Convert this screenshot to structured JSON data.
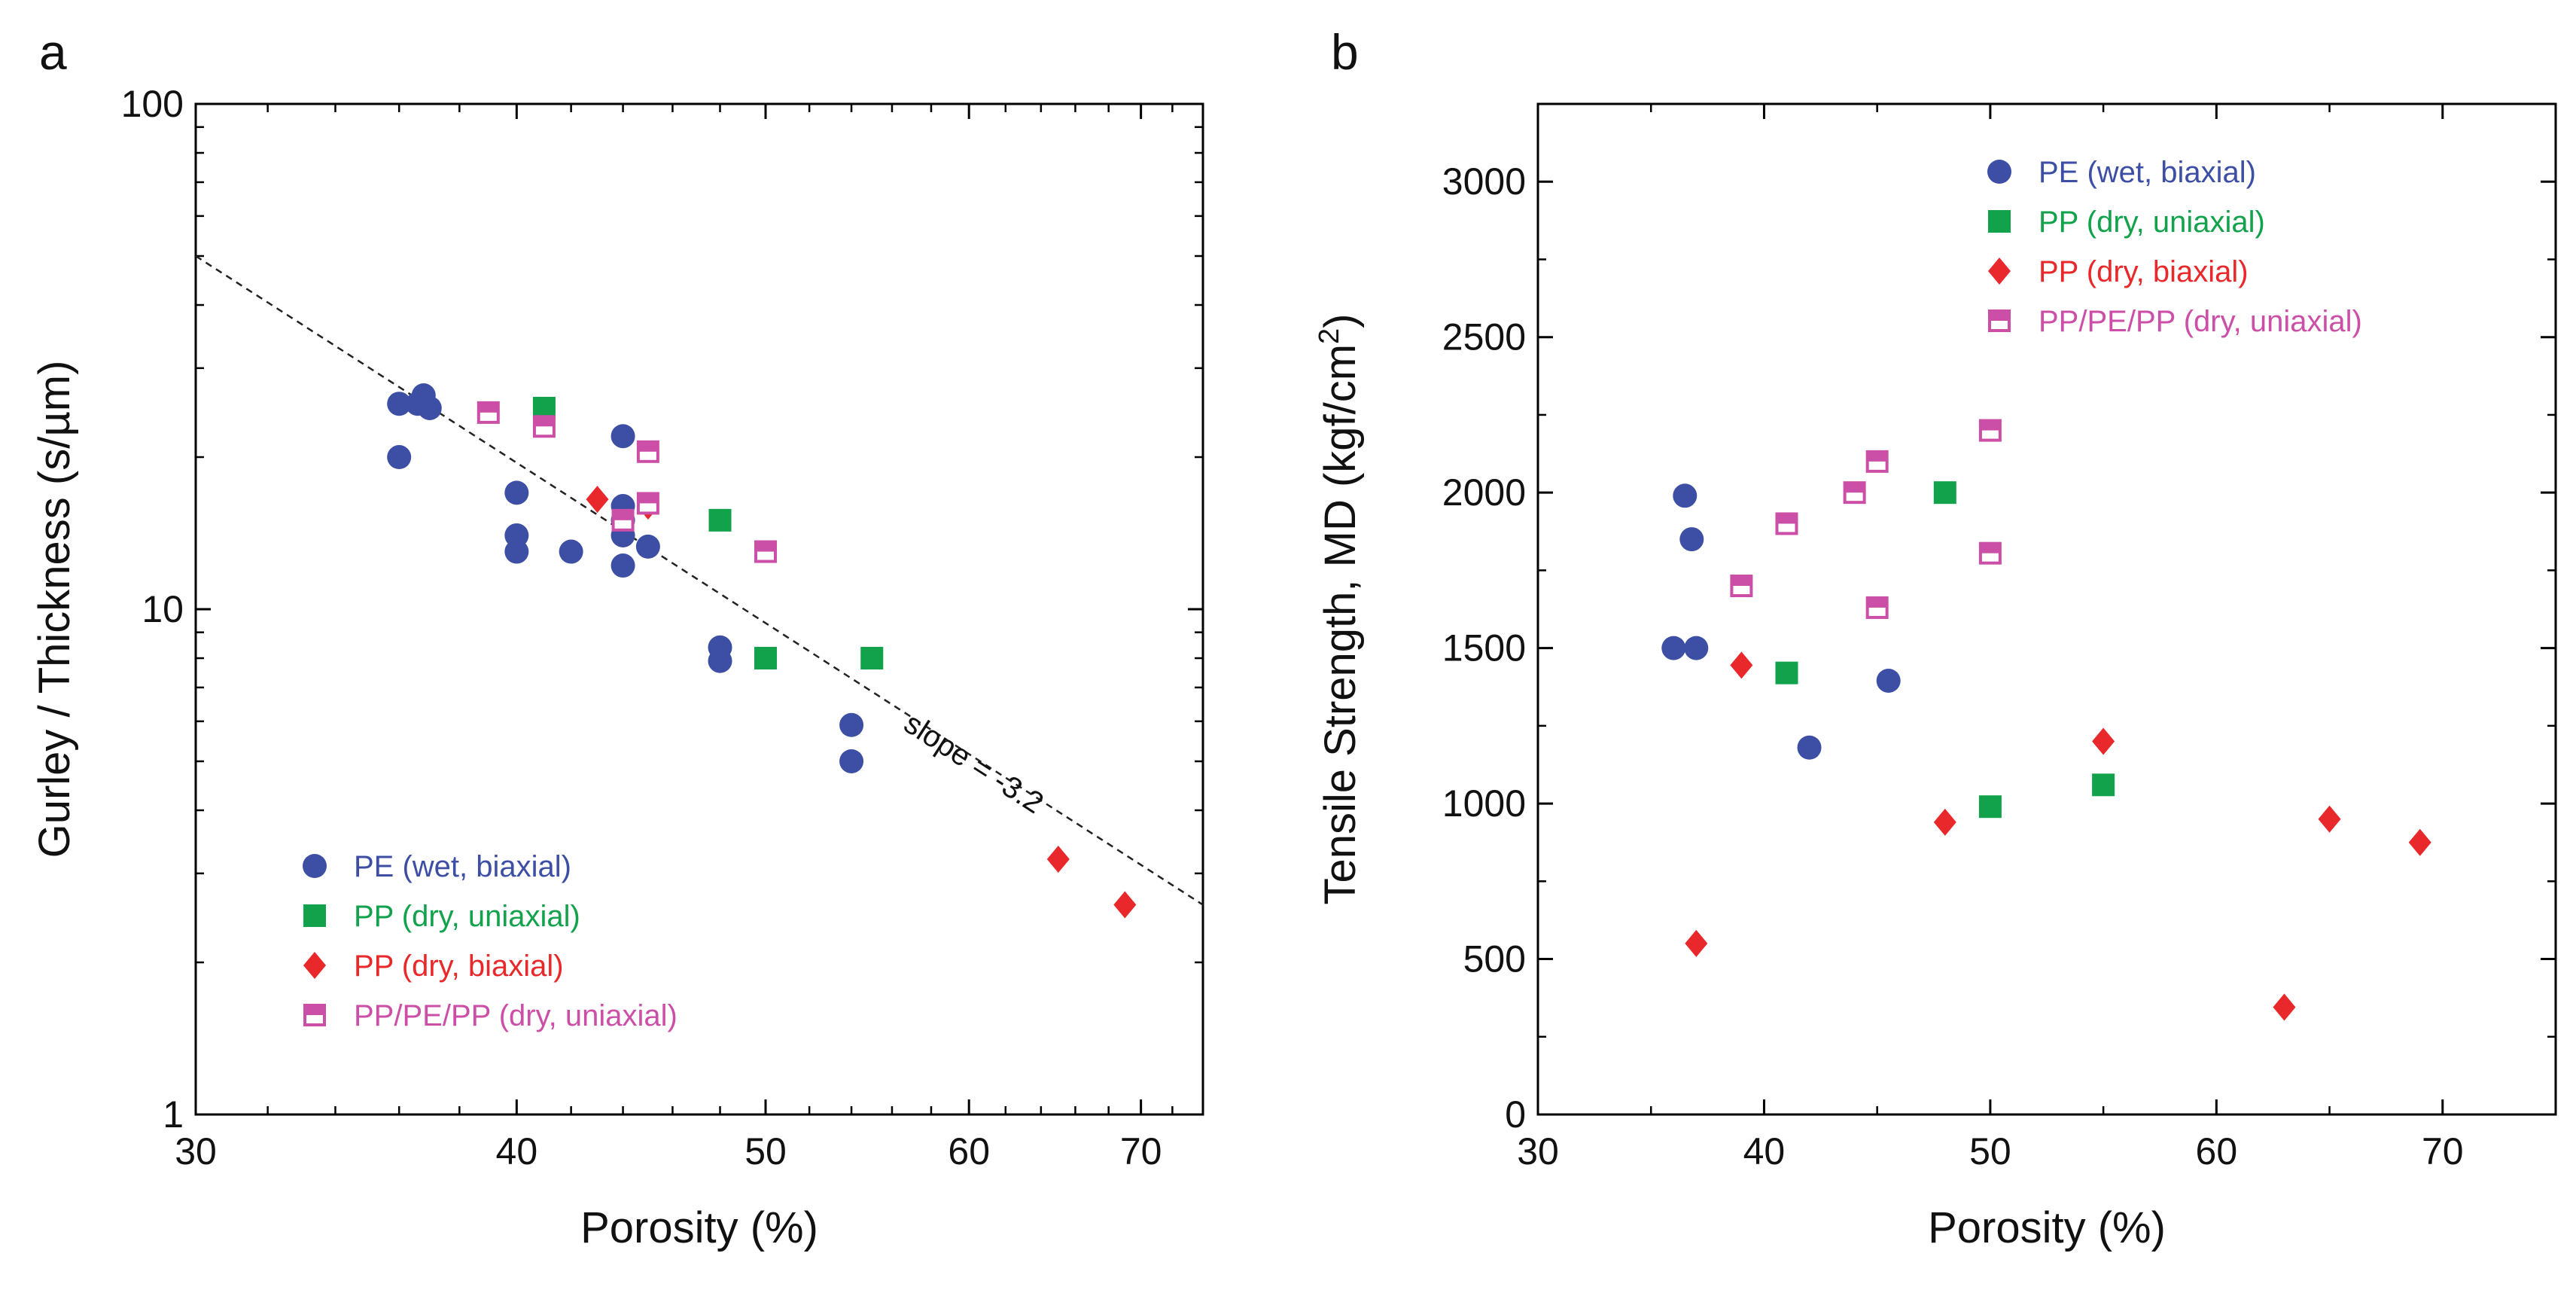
{
  "chart_data": [
    {
      "panel": "a",
      "type": "scatter",
      "xlabel": "Porosity (%)",
      "ylabel": "Gurley / Thickness (s/µm)",
      "xscale": "log",
      "yscale": "log",
      "xlim": [
        30,
        74
      ],
      "ylim": [
        1,
        100
      ],
      "x_ticks": [
        30,
        40,
        50,
        60,
        70
      ],
      "y_ticks": [
        1,
        10,
        100
      ],
      "grid": false,
      "legend_position": "bottom-left",
      "series": [
        {
          "name": "PE (wet, biaxial)",
          "marker": "circle",
          "color": "#3d4fa5",
          "points": [
            [
              36,
              25.5
            ],
            [
              36.6,
              25.5
            ],
            [
              36.8,
              26.5
            ],
            [
              37,
              25
            ],
            [
              36,
              20
            ],
            [
              40,
              17
            ],
            [
              40,
              14
            ],
            [
              40,
              13
            ],
            [
              42,
              13
            ],
            [
              44,
              22
            ],
            [
              44,
              16
            ],
            [
              44,
              15
            ],
            [
              44,
              14
            ],
            [
              44,
              12.2
            ],
            [
              45,
              13.3
            ],
            [
              48,
              8.4
            ],
            [
              48,
              7.9
            ],
            [
              54,
              5.9
            ],
            [
              54,
              5
            ]
          ]
        },
        {
          "name": "PP (dry, uniaxial)",
          "marker": "square",
          "color": "#12a24b",
          "points": [
            [
              41,
              25
            ],
            [
              48,
              15
            ],
            [
              50,
              8
            ],
            [
              55,
              8
            ]
          ]
        },
        {
          "name": "PP (dry, biaxial)",
          "marker": "diamond",
          "color": "#e8282a",
          "points": [
            [
              43,
              16.5
            ],
            [
              45,
              16
            ],
            [
              65,
              3.2
            ],
            [
              69,
              2.6
            ]
          ]
        },
        {
          "name": "PP/PE/PP (dry, uniaxial)",
          "marker": "half-square",
          "color": "#cc4fa7",
          "points": [
            [
              39,
              24.5
            ],
            [
              41,
              23
            ],
            [
              45,
              20.5
            ],
            [
              45,
              16.2
            ],
            [
              44,
              15
            ],
            [
              50,
              13
            ]
          ]
        }
      ],
      "fit_line": {
        "label": "slope = -3.2",
        "slope": -3.2,
        "points": [
          [
            30,
            50
          ],
          [
            74,
            2.6
          ]
        ]
      }
    },
    {
      "panel": "b",
      "type": "scatter",
      "xlabel": "Porosity (%)",
      "ylabel_main": "Tensile Strength, MD (kgf/cm",
      "ylabel_sup": "2",
      "ylabel_end": ")",
      "xlim": [
        30,
        75
      ],
      "ylim": [
        0,
        3250
      ],
      "x_ticks": [
        30,
        40,
        50,
        60,
        70
      ],
      "y_ticks": [
        0,
        500,
        1000,
        1500,
        2000,
        2500,
        3000
      ],
      "grid": false,
      "legend_position": "top-center",
      "series": [
        {
          "name": "PE (wet, biaxial)",
          "marker": "circle",
          "color": "#3d4fa5",
          "points": [
            [
              36,
              1500
            ],
            [
              37,
              1500
            ],
            [
              36.5,
              1990
            ],
            [
              36.8,
              1850
            ],
            [
              42,
              1180
            ],
            [
              45.5,
              1395
            ]
          ]
        },
        {
          "name": "PP (dry, uniaxial)",
          "marker": "square",
          "color": "#12a24b",
          "points": [
            [
              41,
              1420
            ],
            [
              48,
              2000
            ],
            [
              50,
              990
            ],
            [
              55,
              1060
            ]
          ]
        },
        {
          "name": "PP (dry, biaxial)",
          "marker": "diamond",
          "color": "#e8282a",
          "points": [
            [
              37,
              550
            ],
            [
              39,
              1445
            ],
            [
              48,
              940
            ],
            [
              55,
              1200
            ],
            [
              63,
              345
            ],
            [
              65,
              950
            ],
            [
              69,
              875
            ]
          ]
        },
        {
          "name": "PP/PE/PP (dry, uniaxial)",
          "marker": "half-square",
          "color": "#cc4fa7",
          "points": [
            [
              39,
              1700
            ],
            [
              41,
              1900
            ],
            [
              44,
              2000
            ],
            [
              45,
              2100
            ],
            [
              45,
              1630
            ],
            [
              50,
              2200
            ],
            [
              50,
              1805
            ]
          ]
        }
      ]
    }
  ]
}
